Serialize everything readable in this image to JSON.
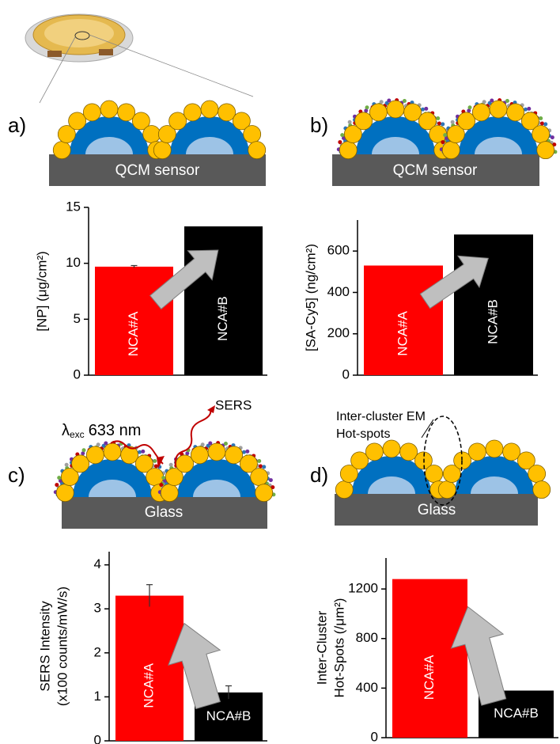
{
  "chart_data": [
    {
      "type": "bar",
      "y_label": [
        "[NP] (μg/cm²)"
      ],
      "categories": [
        "NCA#A",
        "NCA#B"
      ],
      "values": [
        9.7,
        13.3
      ],
      "errors": [
        0.1,
        null
      ],
      "colors": [
        "#ff0000",
        "#000000"
      ],
      "ylim": [
        0,
        15
      ],
      "yticks": [
        0,
        5,
        10,
        15
      ]
    },
    {
      "type": "bar",
      "y_label": [
        "[SA-Cy5] (ng/cm²)"
      ],
      "categories": [
        "NCA#A",
        "NCA#B"
      ],
      "values": [
        530,
        680
      ],
      "errors": [
        null,
        null
      ],
      "colors": [
        "#ff0000",
        "#000000"
      ],
      "ylim": [
        0,
        750
      ],
      "yticks": [
        0,
        200,
        400,
        600
      ]
    },
    {
      "type": "bar",
      "y_label": [
        "SERS Intensity",
        "(x100 counts/mW/s)"
      ],
      "categories": [
        "NCA#A",
        "NCA#B"
      ],
      "values": [
        3.3,
        1.1
      ],
      "errors": [
        0.25,
        0.15
      ],
      "colors": [
        "#ff0000",
        "#000000"
      ],
      "ylim": [
        0,
        4.3
      ],
      "yticks": [
        0,
        1,
        2,
        3,
        4
      ]
    },
    {
      "type": "bar",
      "y_label": [
        "Inter-Cluster",
        "Hot-Spots (/μm²)"
      ],
      "categories": [
        "NCA#A",
        "NCA#B"
      ],
      "values": [
        1280,
        380
      ],
      "errors": [
        null,
        null
      ],
      "colors": [
        "#ff0000",
        "#000000"
      ],
      "ylim": [
        0,
        1450
      ],
      "yticks": [
        0,
        400,
        800,
        1200
      ]
    }
  ],
  "diagram": {
    "panels": [
      {
        "label": "a)",
        "substrate": "QCM sensor"
      },
      {
        "label": "b)",
        "substrate": "QCM sensor"
      },
      {
        "label": "c)",
        "substrate": "Glass"
      },
      {
        "label": "d)",
        "substrate": "Glass"
      }
    ],
    "excitation": {
      "symbol": "λ",
      "subscript": "exc",
      "text": "633 nm"
    },
    "scattered": "SERS",
    "hotspots": [
      "Inter-cluster EM",
      "Hot-spots"
    ]
  }
}
